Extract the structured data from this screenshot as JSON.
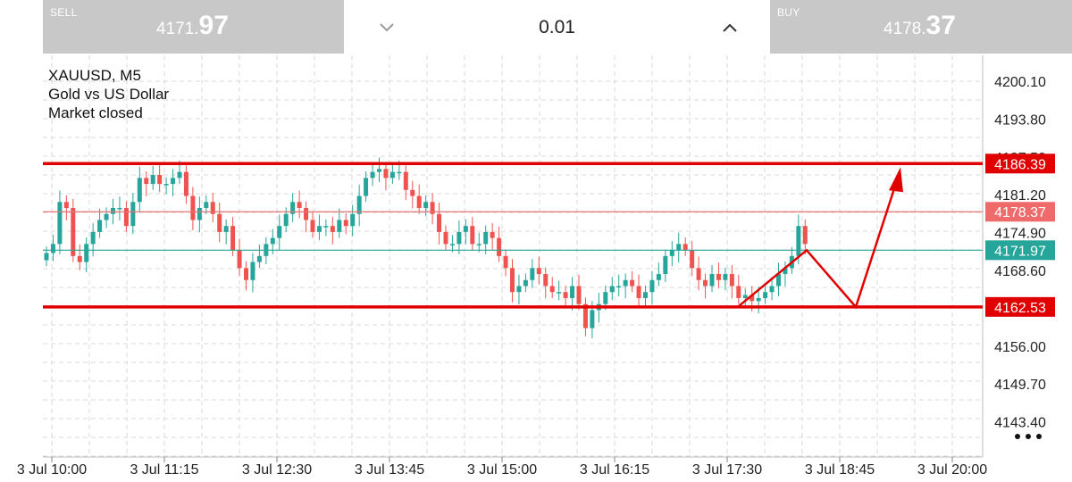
{
  "sell": {
    "label": "SELL",
    "price_main": "4171.",
    "price_big": "97"
  },
  "buy": {
    "label": "BUY",
    "price_main": "4178.",
    "price_big": "37"
  },
  "lot": {
    "value": "0.01"
  },
  "symbol_info": {
    "symbol": "XAUUSD, M5",
    "description": "Gold vs US Dollar",
    "status": "Market closed"
  },
  "colors": {
    "up": "#26a69a",
    "down": "#ef5350",
    "drawing": "#e00000",
    "grid": "#d8d8d8"
  },
  "icons": {
    "decrease": "chevron-down-icon",
    "increase": "chevron-up-icon",
    "menu": "more-dots-icon"
  },
  "chart_data": {
    "type": "candlestick",
    "symbol": "XAUUSD",
    "timeframe": "M5",
    "y_ticks": [
      "4200.10",
      "4193.80",
      "4187.50",
      "4181.20",
      "4174.90",
      "4168.60",
      "4156.00",
      "4149.70",
      "4143.40"
    ],
    "x_ticks": [
      "3 Jul 10:00",
      "3 Jul 11:15",
      "3 Jul 12:30",
      "3 Jul 13:45",
      "3 Jul 15:00",
      "3 Jul 16:15",
      "3 Jul 17:30",
      "3 Jul 18:45",
      "3 Jul 20:00"
    ],
    "bid_price": "4171.97",
    "ask_price": "4178.37",
    "horizontal_levels": [
      {
        "value": 4186.39,
        "label": "4186.39",
        "style": "thick-red"
      },
      {
        "value": 4162.53,
        "label": "4162.53",
        "style": "thick-red"
      }
    ],
    "drawn_path_prices": [
      4162.53,
      4171.97,
      4162.53,
      4186.39
    ],
    "close_prices": [
      4171.5,
      4173,
      4180,
      4179,
      4171,
      4170,
      4173,
      4175,
      4177,
      4178,
      4179,
      4179,
      4176,
      4180,
      4184,
      4183,
      4184.5,
      4183,
      4183,
      4184,
      4185,
      4181,
      4177,
      4179,
      4180,
      4178,
      4175,
      4176,
      4172,
      4169,
      4167,
      4170,
      4171,
      4173,
      4174,
      4176,
      4178,
      4180,
      4179,
      4177,
      4175,
      4176,
      4176,
      4175,
      4177,
      4176,
      4178,
      4181,
      4184,
      4185,
      4185.5,
      4184,
      4185,
      4185,
      4182,
      4181,
      4179,
      4180,
      4178,
      4175,
      4173,
      4173,
      4175,
      4176,
      4173,
      4173,
      4175,
      4174,
      4171,
      4169,
      4165,
      4166,
      4167,
      4169,
      4168,
      4166,
      4165,
      4165,
      4164,
      4166,
      4163,
      4159,
      4162,
      4163,
      4165,
      4166,
      4166,
      4167,
      4166,
      4164,
      4165,
      4167,
      4168,
      4171,
      4172,
      4173,
      4172,
      4169,
      4167,
      4166,
      4168,
      4167,
      4168,
      4166,
      4164,
      4164.5,
      4163.5,
      4164,
      4165,
      4166,
      4168,
      4169,
      4171,
      4176,
      4173
    ]
  }
}
